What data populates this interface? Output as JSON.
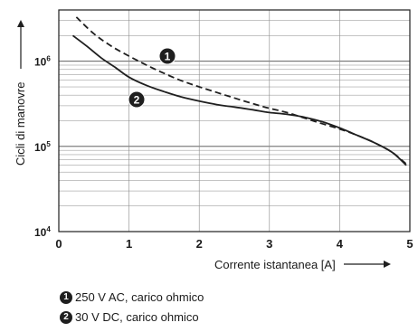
{
  "chart_data": {
    "type": "line",
    "xlabel": "Corrente istantanea [A]",
    "ylabel": "Cicli di manovre",
    "x_ticks": [
      "0",
      "1",
      "2",
      "3",
      "4",
      "5"
    ],
    "y_ticks": [
      {
        "base": "10",
        "exp": "4",
        "value": 10000
      },
      {
        "base": "10",
        "exp": "5",
        "value": 100000
      },
      {
        "base": "10",
        "exp": "6",
        "value": 1000000
      }
    ],
    "xlim": [
      0,
      5
    ],
    "ylim": [
      10000,
      4000000
    ],
    "yscale": "log",
    "grid": true,
    "series": [
      {
        "marker": "1",
        "style": "dashed",
        "color": "#1f1f1f",
        "x": [
          0.25,
          0.5,
          0.75,
          1.0,
          1.25,
          1.5,
          1.75,
          2.0,
          2.25,
          2.5,
          2.75,
          3.0,
          3.25,
          3.5,
          3.75,
          4.0,
          4.25,
          4.5,
          4.75,
          4.95
        ],
        "y": [
          3300000,
          2100000,
          1500000,
          1150000,
          900000,
          720000,
          590000,
          500000,
          430000,
          370000,
          320000,
          280000,
          250000,
          215000,
          185000,
          160000,
          135000,
          110000,
          85000,
          62000
        ]
      },
      {
        "marker": "2",
        "style": "solid",
        "color": "#1f1f1f",
        "x": [
          0.2,
          0.4,
          0.6,
          0.8,
          1.0,
          1.25,
          1.5,
          1.75,
          2.0,
          2.25,
          2.5,
          2.75,
          3.0,
          3.25,
          3.5,
          3.75,
          4.0,
          4.25,
          4.5,
          4.75,
          4.95
        ],
        "y": [
          2000000,
          1500000,
          1100000,
          850000,
          650000,
          520000,
          440000,
          380000,
          340000,
          310000,
          290000,
          270000,
          250000,
          238000,
          220000,
          195000,
          165000,
          135000,
          110000,
          85000,
          60000
        ]
      }
    ]
  },
  "legend": [
    {
      "marker": "1",
      "text": "250 V AC, carico ohmico"
    },
    {
      "marker": "2",
      "text": "30 V DC, carico ohmico"
    }
  ]
}
